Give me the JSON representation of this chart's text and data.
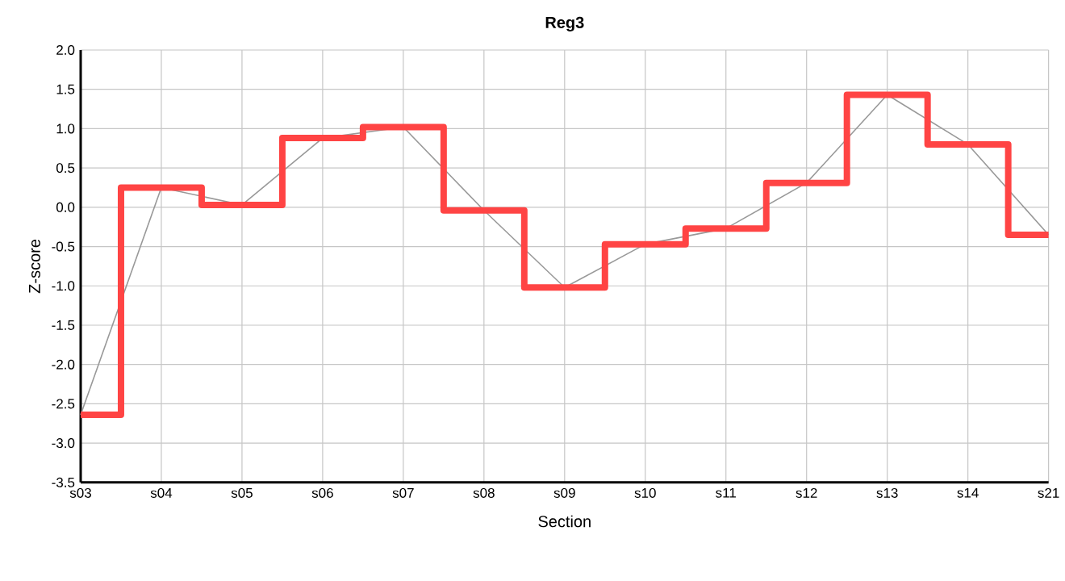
{
  "chart_data": {
    "type": "line",
    "title": "Reg3",
    "xlabel": "Section",
    "ylabel": "Z-score",
    "categories": [
      "s03",
      "s04",
      "s05",
      "s06",
      "s07",
      "s08",
      "s09",
      "s10",
      "s11",
      "s12",
      "s13",
      "s14",
      "s21"
    ],
    "series": [
      {
        "color": "#999999",
        "values": [
          -2.64,
          0.25,
          0.03,
          0.88,
          1.02,
          -0.04,
          -1.02,
          -0.47,
          -0.27,
          0.31,
          1.43,
          0.8,
          -0.35
        ]
      },
      {
        "type": "step",
        "color": "#ff4444",
        "values": [
          -2.64,
          0.25,
          0.03,
          0.88,
          1.02,
          -0.04,
          -1.02,
          -0.47,
          -0.27,
          0.31,
          1.43,
          0.8,
          -0.35
        ]
      }
    ],
    "ylim": [
      -3.5,
      2.0
    ],
    "yticks": [
      {
        "value": -3.5,
        "label": "-3.5"
      },
      {
        "value": -3.0,
        "label": "-3.0"
      },
      {
        "value": -2.5,
        "label": "-2.5"
      },
      {
        "value": -2.0,
        "label": "-2.0"
      },
      {
        "value": -1.5,
        "label": "-1.5"
      },
      {
        "value": -1.0,
        "label": "-1.0"
      },
      {
        "value": -0.5,
        "label": "-0.5"
      },
      {
        "value": 0.0,
        "label": "0.0"
      },
      {
        "value": 0.5,
        "label": "0.5"
      },
      {
        "value": 1.0,
        "label": "1.0"
      },
      {
        "value": 1.5,
        "label": "1.5"
      },
      {
        "value": 2.0,
        "label": "2.0"
      }
    ],
    "grid": true,
    "marker": "none",
    "line_style": "solid"
  }
}
